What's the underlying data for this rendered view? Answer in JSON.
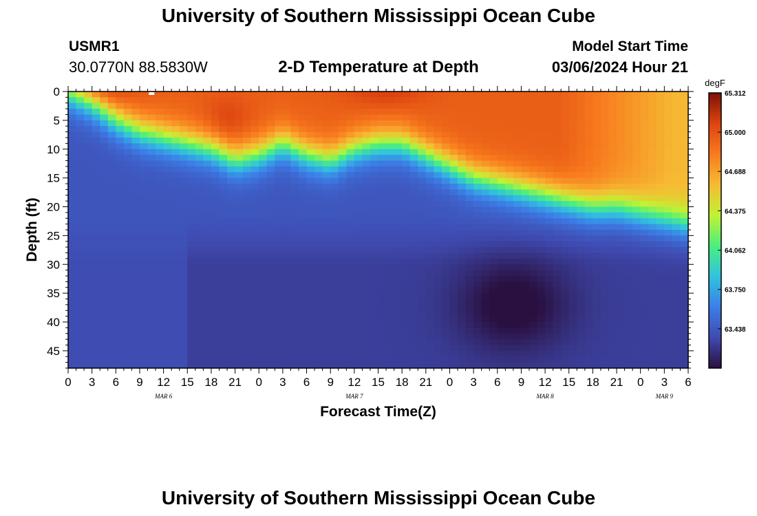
{
  "header": {
    "top_title": "University of Southern Mississippi Ocean Cube",
    "station_id": "USMR1",
    "station_coords": "30.0770N  88.5830W",
    "plot_title": "2-D Temperature at Depth",
    "model_start_label": "Model Start Time",
    "model_start_value": "03/06/2024 Hour 21"
  },
  "footer": {
    "bottom_title": "University of Southern Mississippi Ocean Cube"
  },
  "chart_data": {
    "type": "heatmap",
    "title": "2-D Temperature at Depth",
    "xlabel": "Forecast Time(Z)",
    "ylabel": "Depth (ft)",
    "x_tick_labels": [
      "0",
      "3",
      "6",
      "9",
      "12",
      "15",
      "18",
      "21",
      "0",
      "3",
      "6",
      "9",
      "12",
      "15",
      "18",
      "21",
      "0",
      "3",
      "6",
      "9",
      "12",
      "15",
      "18",
      "21",
      "0",
      "3",
      "6"
    ],
    "date_labels": [
      {
        "label": "MAR 6",
        "tick_index": 4
      },
      {
        "label": "MAR 7",
        "tick_index": 12
      },
      {
        "label": "MAR 8",
        "tick_index": 20
      },
      {
        "label": "MAR 9",
        "tick_index": 25
      }
    ],
    "y_ticks": [
      0,
      5,
      10,
      15,
      20,
      25,
      30,
      35,
      40,
      45
    ],
    "ylim": [
      0,
      48
    ],
    "x_range_hours": [
      0,
      78
    ],
    "colorbar": {
      "unit": "degF",
      "min": 63.125,
      "max": 65.312,
      "tick_labels": [
        "65.312",
        "65.000",
        "64.688",
        "64.375",
        "64.062",
        "63.750",
        "63.438"
      ],
      "tick_values": [
        65.312,
        65.0,
        64.688,
        64.375,
        64.062,
        63.75,
        63.438
      ],
      "colors": [
        "#2a1040",
        "#3f4ab0",
        "#3c7ee8",
        "#30c3de",
        "#4bef7e",
        "#c1f233",
        "#f6bb33",
        "#f87b1e",
        "#dd4410",
        "#7b1207"
      ]
    },
    "thermocline_depth_ft": {
      "hours": [
        0,
        3,
        6,
        9,
        12,
        15,
        18,
        21,
        24,
        27,
        30,
        33,
        36,
        39,
        42,
        45,
        48,
        51,
        54,
        57,
        60,
        63,
        66,
        69,
        72,
        75,
        78
      ],
      "depth": [
        0,
        2,
        5,
        7,
        8,
        9,
        10,
        12,
        11,
        9,
        11,
        12,
        10,
        9,
        9,
        11,
        13,
        15,
        16,
        17,
        18,
        19,
        20,
        20,
        21,
        22,
        23
      ]
    },
    "cold_core": {
      "center_hour": 56,
      "center_depth_ft": 37,
      "min_temp_degF": 63.15
    }
  }
}
